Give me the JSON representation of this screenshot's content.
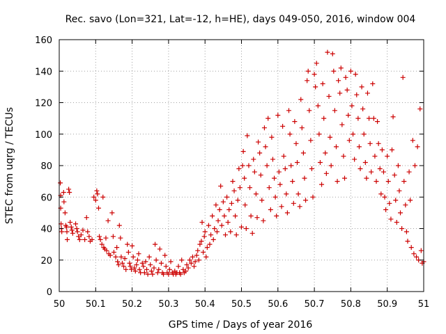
{
  "chart_data": {
    "type": "scatter",
    "title": "Rec. savo (Lon=321, Lat=-12, h=HE), days 049-050, 2016, window 004",
    "xlabel": "GPS time / Days of year 2016",
    "ylabel": "STEC from uqrg / TECUs",
    "xlim": [
      50,
      51
    ],
    "ylim": [
      0,
      160
    ],
    "x_ticks": [
      "50",
      "50.1",
      "50.2",
      "50.3",
      "50.4",
      "50.5",
      "50.6",
      "50.7",
      "50.8",
      "50.9",
      "51"
    ],
    "y_ticks": [
      "0",
      "20",
      "40",
      "60",
      "80",
      "100",
      "120",
      "140",
      "160"
    ],
    "grid": true,
    "marker": "+",
    "color": "#cc0000",
    "series": [
      {
        "values": [
          [
            50.003,
            69
          ],
          [
            50.004,
            61
          ],
          [
            50.004,
            53
          ],
          [
            50.005,
            43
          ],
          [
            50.006,
            40
          ],
          [
            50.007,
            38
          ],
          [
            50.012,
            63
          ],
          [
            50.013,
            57
          ],
          [
            50.016,
            50
          ],
          [
            50.018,
            42
          ],
          [
            50.02,
            41
          ],
          [
            50.021,
            38
          ],
          [
            50.022,
            33
          ],
          [
            50.026,
            65
          ],
          [
            50.028,
            63
          ],
          [
            50.03,
            44
          ],
          [
            50.033,
            41
          ],
          [
            50.035,
            39
          ],
          [
            50.037,
            37
          ],
          [
            50.045,
            43
          ],
          [
            50.048,
            40
          ],
          [
            50.05,
            38
          ],
          [
            50.053,
            35
          ],
          [
            50.056,
            33
          ],
          [
            50.06,
            36
          ],
          [
            50.065,
            39
          ],
          [
            50.07,
            33
          ],
          [
            50.075,
            47
          ],
          [
            50.078,
            38
          ],
          [
            50.082,
            35
          ],
          [
            50.085,
            32
          ],
          [
            50.09,
            33
          ],
          [
            50.095,
            60
          ],
          [
            50.1,
            58
          ],
          [
            50.103,
            64
          ],
          [
            50.105,
            62
          ],
          [
            50.108,
            53
          ],
          [
            50.11,
            35
          ],
          [
            50.113,
            33
          ],
          [
            50.117,
            30
          ],
          [
            50.12,
            60
          ],
          [
            50.122,
            28
          ],
          [
            50.125,
            27
          ],
          [
            50.128,
            34
          ],
          [
            50.13,
            26
          ],
          [
            50.134,
            45
          ],
          [
            50.136,
            24
          ],
          [
            50.14,
            23
          ],
          [
            50.145,
            50
          ],
          [
            50.148,
            35
          ],
          [
            50.15,
            25
          ],
          [
            50.155,
            22
          ],
          [
            50.158,
            28
          ],
          [
            50.16,
            19
          ],
          [
            50.163,
            17
          ],
          [
            50.165,
            42
          ],
          [
            50.168,
            34
          ],
          [
            50.17,
            22
          ],
          [
            50.173,
            18
          ],
          [
            50.177,
            16
          ],
          [
            50.18,
            21
          ],
          [
            50.183,
            14
          ],
          [
            50.187,
            30
          ],
          [
            50.19,
            25
          ],
          [
            50.193,
            18
          ],
          [
            50.195,
            16
          ],
          [
            50.198,
            14
          ],
          [
            50.2,
            29
          ],
          [
            50.203,
            22
          ],
          [
            50.206,
            15
          ],
          [
            50.209,
            13
          ],
          [
            50.212,
            17
          ],
          [
            50.215,
            20
          ],
          [
            50.218,
            24
          ],
          [
            50.22,
            14
          ],
          [
            50.223,
            12
          ],
          [
            50.228,
            18
          ],
          [
            50.231,
            16
          ],
          [
            50.234,
            12
          ],
          [
            50.237,
            19
          ],
          [
            50.24,
            14
          ],
          [
            50.243,
            11
          ],
          [
            50.247,
            22
          ],
          [
            50.25,
            17
          ],
          [
            50.253,
            13
          ],
          [
            50.256,
            11
          ],
          [
            50.26,
            15
          ],
          [
            50.263,
            30
          ],
          [
            50.266,
            20
          ],
          [
            50.27,
            12
          ],
          [
            50.273,
            14
          ],
          [
            50.276,
            27
          ],
          [
            50.28,
            18
          ],
          [
            50.283,
            12
          ],
          [
            50.286,
            11
          ],
          [
            50.29,
            23
          ],
          [
            50.293,
            16
          ],
          [
            50.296,
            12
          ],
          [
            50.3,
            11
          ],
          [
            50.303,
            14
          ],
          [
            50.306,
            19
          ],
          [
            50.31,
            12
          ],
          [
            50.313,
            11
          ],
          [
            50.317,
            13
          ],
          [
            50.32,
            11
          ],
          [
            50.323,
            12
          ],
          [
            50.327,
            16
          ],
          [
            50.33,
            12
          ],
          [
            50.333,
            11
          ],
          [
            50.336,
            20
          ],
          [
            50.34,
            14
          ],
          [
            50.343,
            12
          ],
          [
            50.347,
            13
          ],
          [
            50.35,
            17
          ],
          [
            50.354,
            15
          ],
          [
            50.358,
            20
          ],
          [
            50.362,
            18
          ],
          [
            50.366,
            22
          ],
          [
            50.37,
            16
          ],
          [
            50.373,
            19
          ],
          [
            50.377,
            23
          ],
          [
            50.38,
            26
          ],
          [
            50.383,
            20
          ],
          [
            50.386,
            30
          ],
          [
            50.39,
            32
          ],
          [
            50.392,
            44
          ],
          [
            50.395,
            25
          ],
          [
            50.398,
            35
          ],
          [
            50.4,
            38
          ],
          [
            50.403,
            22
          ],
          [
            50.406,
            28
          ],
          [
            50.41,
            42
          ],
          [
            50.413,
            30
          ],
          [
            50.416,
            36
          ],
          [
            50.42,
            48
          ],
          [
            50.423,
            33
          ],
          [
            50.426,
            40
          ],
          [
            50.43,
            55
          ],
          [
            50.433,
            38
          ],
          [
            50.436,
            45
          ],
          [
            50.44,
            52
          ],
          [
            50.443,
            67
          ],
          [
            50.446,
            42
          ],
          [
            50.45,
            57
          ],
          [
            50.453,
            48
          ],
          [
            50.456,
            36
          ],
          [
            50.46,
            60
          ],
          [
            50.463,
            44
          ],
          [
            50.466,
            52
          ],
          [
            50.47,
            38
          ],
          [
            50.473,
            56
          ],
          [
            50.476,
            70
          ],
          [
            50.48,
            64
          ],
          [
            50.483,
            48
          ],
          [
            50.486,
            36
          ],
          [
            50.49,
            58
          ],
          [
            50.493,
            78
          ],
          [
            50.496,
            66
          ],
          [
            50.5,
            41
          ],
          [
            50.503,
            80
          ],
          [
            50.505,
            89
          ],
          [
            50.508,
            72
          ],
          [
            50.51,
            55
          ],
          [
            50.513,
            40
          ],
          [
            50.516,
            99
          ],
          [
            50.52,
            80
          ],
          [
            50.523,
            66
          ],
          [
            50.526,
            48
          ],
          [
            50.53,
            37
          ],
          [
            50.533,
            84
          ],
          [
            50.536,
            76
          ],
          [
            50.54,
            62
          ],
          [
            50.543,
            47
          ],
          [
            50.546,
            95
          ],
          [
            50.55,
            88
          ],
          [
            50.553,
            74
          ],
          [
            50.556,
            58
          ],
          [
            50.56,
            45
          ],
          [
            50.563,
            104
          ],
          [
            50.566,
            92
          ],
          [
            50.57,
            80
          ],
          [
            50.573,
            110
          ],
          [
            50.576,
            66
          ],
          [
            50.58,
            52
          ],
          [
            50.583,
            98
          ],
          [
            50.586,
            84
          ],
          [
            50.59,
            72
          ],
          [
            50.593,
            60
          ],
          [
            50.596,
            48
          ],
          [
            50.6,
            112
          ],
          [
            50.603,
            76
          ],
          [
            50.606,
            68
          ],
          [
            50.61,
            54
          ],
          [
            50.613,
            105
          ],
          [
            50.616,
            86
          ],
          [
            50.62,
            78
          ],
          [
            50.623,
            62
          ],
          [
            50.626,
            50
          ],
          [
            50.63,
            115
          ],
          [
            50.633,
            100
          ],
          [
            50.636,
            80
          ],
          [
            50.64,
            70
          ],
          [
            50.643,
            56
          ],
          [
            50.646,
            108
          ],
          [
            50.65,
            94
          ],
          [
            50.653,
            82
          ],
          [
            50.656,
            62
          ],
          [
            50.66,
            54
          ],
          [
            50.663,
            122
          ],
          [
            50.666,
            104
          ],
          [
            50.67,
            88
          ],
          [
            50.673,
            72
          ],
          [
            50.676,
            58
          ],
          [
            50.68,
            134
          ],
          [
            50.683,
            140
          ],
          [
            50.686,
            115
          ],
          [
            50.69,
            96
          ],
          [
            50.693,
            78
          ],
          [
            50.696,
            60
          ],
          [
            50.7,
            138
          ],
          [
            50.703,
            130
          ],
          [
            50.706,
            145
          ],
          [
            50.71,
            118
          ],
          [
            50.713,
            100
          ],
          [
            50.716,
            82
          ],
          [
            50.72,
            68
          ],
          [
            50.723,
            132
          ],
          [
            50.726,
            110
          ],
          [
            50.73,
            88
          ],
          [
            50.733,
            75
          ],
          [
            50.736,
            152
          ],
          [
            50.74,
            124
          ],
          [
            50.743,
            98
          ],
          [
            50.746,
            80
          ],
          [
            50.75,
            151
          ],
          [
            50.753,
            140
          ],
          [
            50.756,
            115
          ],
          [
            50.76,
            92
          ],
          [
            50.763,
            70
          ],
          [
            50.766,
            134
          ],
          [
            50.77,
            126
          ],
          [
            50.773,
            142
          ],
          [
            50.776,
            106
          ],
          [
            50.78,
            86
          ],
          [
            50.783,
            72
          ],
          [
            50.786,
            136
          ],
          [
            50.79,
            128
          ],
          [
            50.793,
            112
          ],
          [
            50.796,
            96
          ],
          [
            50.8,
            140
          ],
          [
            50.803,
            118
          ],
          [
            50.806,
            100
          ],
          [
            50.81,
            84
          ],
          [
            50.813,
            138
          ],
          [
            50.816,
            125
          ],
          [
            50.82,
            110
          ],
          [
            50.823,
            92
          ],
          [
            50.826,
            78
          ],
          [
            50.83,
            130
          ],
          [
            50.833,
            116
          ],
          [
            50.836,
            100
          ],
          [
            50.84,
            82
          ],
          [
            50.843,
            72
          ],
          [
            50.846,
            126
          ],
          [
            50.85,
            110
          ],
          [
            50.853,
            94
          ],
          [
            50.856,
            76
          ],
          [
            50.86,
            132
          ],
          [
            50.863,
            110
          ],
          [
            50.866,
            86
          ],
          [
            50.87,
            70
          ],
          [
            50.873,
            108
          ],
          [
            50.876,
            94
          ],
          [
            50.88,
            78
          ],
          [
            50.883,
            62
          ],
          [
            50.886,
            90
          ],
          [
            50.89,
            76
          ],
          [
            50.893,
            60
          ],
          [
            50.896,
            52
          ],
          [
            50.9,
            86
          ],
          [
            50.903,
            70
          ],
          [
            50.906,
            56
          ],
          [
            50.91,
            46
          ],
          [
            50.913,
            90
          ],
          [
            50.916,
            111
          ],
          [
            50.92,
            74
          ],
          [
            50.923,
            58
          ],
          [
            50.926,
            44
          ],
          [
            50.93,
            80
          ],
          [
            50.933,
            64
          ],
          [
            50.936,
            50
          ],
          [
            50.94,
            40
          ],
          [
            50.943,
            136
          ],
          [
            50.946,
            70
          ],
          [
            50.95,
            55
          ],
          [
            50.953,
            38
          ],
          [
            50.956,
            32
          ],
          [
            50.96,
            76
          ],
          [
            50.963,
            58
          ],
          [
            50.966,
            28
          ],
          [
            50.97,
            96
          ],
          [
            50.973,
            24
          ],
          [
            50.976,
            80
          ],
          [
            50.98,
            22
          ],
          [
            50.983,
            92
          ],
          [
            50.986,
            20
          ],
          [
            50.99,
            116
          ],
          [
            50.993,
            26
          ],
          [
            50.996,
            18
          ],
          [
            51.0,
            19
          ]
        ]
      }
    ]
  }
}
